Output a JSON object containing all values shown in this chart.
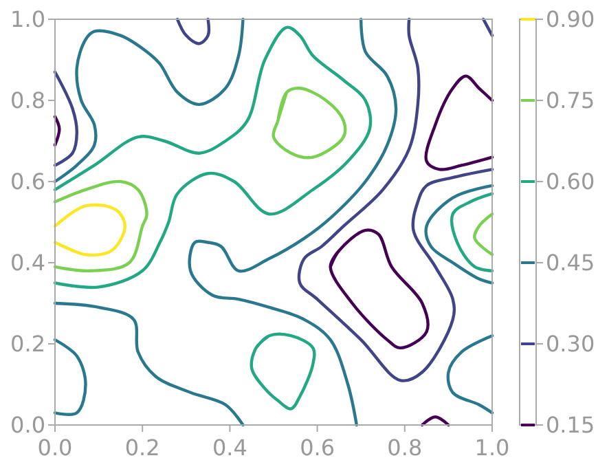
{
  "chart_data": {
    "type": "line",
    "xlim": [
      0,
      1
    ],
    "ylim": [
      0,
      1
    ],
    "legend": "right",
    "xticks": [
      {
        "value": 0,
        "label": "0.0"
      },
      0.2,
      0.4,
      0.6,
      0.8,
      {
        "value": 1,
        "label": "1.0"
      }
    ],
    "yticks": [
      {
        "value": 0,
        "label": "0.0"
      },
      0.2,
      0.4,
      0.6,
      0.8,
      {
        "value": 1,
        "label": "1.0"
      }
    ],
    "series": [
      {
        "name": "0.15",
        "color": "#440154",
        "x": [
          0,
          0.01,
          0,
          null,
          1,
          0.97,
          0.94,
          0.91,
          0.87,
          0.85,
          0.88,
          0.93,
          1,
          null,
          0.63,
          0.65,
          0.71,
          0.74,
          0.77,
          0.84,
          0.85,
          0.79,
          0.76,
          0.68,
          0.63,
          0.65,
          null,
          0.84,
          0.87,
          0.9
        ],
        "values": [
          0.76,
          0.73,
          0.69,
          null,
          0.8,
          0.83,
          0.86,
          0.83,
          0.74,
          0.65,
          0.63,
          0.64,
          0.66,
          null,
          0.39,
          0.43,
          0.48,
          0.47,
          0.39,
          0.3,
          0.23,
          0.19,
          0.21,
          0.3,
          0.39,
          0.43,
          null,
          0,
          0.02,
          0
        ]
      },
      {
        "name": "0.30",
        "color": "#414487",
        "x": [
          0,
          0.04,
          0.05,
          0.04,
          0,
          null,
          0.28,
          0.3,
          0.33,
          0.35,
          0.35,
          null,
          0.81,
          0.81,
          0.83,
          0.83,
          0.81,
          0.75,
          0.66,
          0.61,
          0.57,
          0.56,
          0.6,
          0.7,
          0.79,
          0.84,
          0.91,
          0.91,
          0.87,
          0.82,
          0.83,
          0.85,
          0.91,
          1,
          null,
          0.98,
          1
        ],
        "values": [
          0.87,
          0.78,
          0.72,
          0.67,
          0.64,
          null,
          1,
          0.96,
          0.94,
          0.96,
          1,
          null,
          1,
          0.96,
          0.88,
          0.79,
          0.68,
          0.58,
          0.49,
          0.44,
          0.41,
          0.35,
          0.31,
          0.21,
          0.11,
          0.13,
          0.26,
          0.31,
          0.39,
          0.48,
          0.55,
          0.59,
          0.61,
          0.63,
          null,
          1,
          0.96
        ]
      },
      {
        "name": "0.45",
        "color": "#2a788e",
        "x": [
          0.43,
          0.42,
          0.39,
          0.33,
          0.28,
          0.24,
          0.21,
          0.15,
          0.09,
          0.07,
          0.05,
          0.06,
          0.09,
          0.09,
          0.05,
          0,
          null,
          0.7,
          0.71,
          0.76,
          0.78,
          0.76,
          0.71,
          0.63,
          0.57,
          0.49,
          0.42,
          0.38,
          0.35,
          0.32,
          0.31,
          0.36,
          0.42,
          0.49,
          0.57,
          0.63,
          0.67,
          0.69,
          null,
          0,
          0.1,
          0.18,
          0.19,
          0.23,
          0.31,
          0.39,
          0.43,
          null,
          0,
          0.05,
          0.07,
          0.05,
          0,
          null,
          1,
          0.91,
          0.85,
          0.86,
          0.91,
          0.97,
          1,
          null,
          1,
          0.93,
          0.9,
          0.91,
          0.97,
          1
        ],
        "values": [
          1,
          0.91,
          0.83,
          0.79,
          0.82,
          0.89,
          0.92,
          0.96,
          0.97,
          0.95,
          0.88,
          0.8,
          0.74,
          0.69,
          0.64,
          0.6,
          null,
          1,
          0.92,
          0.86,
          0.78,
          0.69,
          0.6,
          0.51,
          0.46,
          0.41,
          0.38,
          0.44,
          0.45,
          0.45,
          0.38,
          0.32,
          0.31,
          0.29,
          0.26,
          0.21,
          0.1,
          0,
          null,
          0.3,
          0.29,
          0.26,
          0.18,
          0.12,
          0.08,
          0.05,
          0,
          null,
          0.21,
          0.17,
          0.1,
          0.03,
          0.03,
          null,
          0.59,
          0.56,
          0.49,
          0.44,
          0.4,
          0.36,
          0.35,
          null,
          0.22,
          0.18,
          0.13,
          0.08,
          0.05,
          0.03
        ]
      },
      {
        "name": "0.60",
        "color": "#22a884",
        "x": [
          0,
          0.09,
          0.19,
          0.25,
          0.33,
          0.39,
          0.44,
          0.48,
          0.53,
          0.56,
          0.59,
          0.66,
          0.71,
          0.72,
          0.67,
          0.59,
          0.49,
          0.41,
          0.35,
          0.28,
          0.26,
          0.24,
          0.2,
          0.1,
          0,
          null,
          0.49,
          0.46,
          0.45,
          0.48,
          0.51,
          0.54,
          0.56,
          0.59,
          0.59,
          0.54,
          0.49,
          0.46,
          null,
          1,
          0.95,
          0.91,
          0.92,
          0.96,
          1
        ],
        "values": [
          0.58,
          0.64,
          0.71,
          0.7,
          0.67,
          0.7,
          0.75,
          0.9,
          0.98,
          0.96,
          0.91,
          0.85,
          0.8,
          0.73,
          0.65,
          0.58,
          0.52,
          0.6,
          0.62,
          0.57,
          0.5,
          0.45,
          0.38,
          0.34,
          0.35,
          null,
          0.22,
          0.19,
          0.14,
          0.09,
          0.06,
          0.04,
          0.07,
          0.15,
          0.19,
          0.22,
          0.22,
          0.19,
          null,
          0.57,
          0.55,
          0.52,
          0.45,
          0.39,
          0.38
        ]
      },
      {
        "name": "0.75",
        "color": "#7ad151",
        "x": [
          0,
          0.07,
          0.15,
          0.19,
          0.21,
          0.2,
          0.17,
          0.08,
          0,
          null,
          0.51,
          0.53,
          0.56,
          0.62,
          0.66,
          0.66,
          0.59,
          0.54,
          0.5,
          0.51,
          0.53,
          null,
          1,
          0.97,
          0.96,
          1
        ],
        "values": [
          0.55,
          0.58,
          0.6,
          0.58,
          0.52,
          0.49,
          0.4,
          0.38,
          0.39,
          null,
          0.75,
          0.82,
          0.83,
          0.8,
          0.75,
          0.71,
          0.66,
          0.67,
          0.71,
          0.75,
          0.82,
          null,
          0.52,
          0.49,
          0.46,
          0.42
        ]
      },
      {
        "name": "0.90",
        "color": "#fde725",
        "x": [
          0,
          0.07,
          0.14,
          0.16,
          0.13,
          0.07,
          0.02,
          0
        ],
        "values": [
          0.49,
          0.54,
          0.53,
          0.49,
          0.43,
          0.42,
          0.44,
          0.45
        ]
      }
    ]
  }
}
